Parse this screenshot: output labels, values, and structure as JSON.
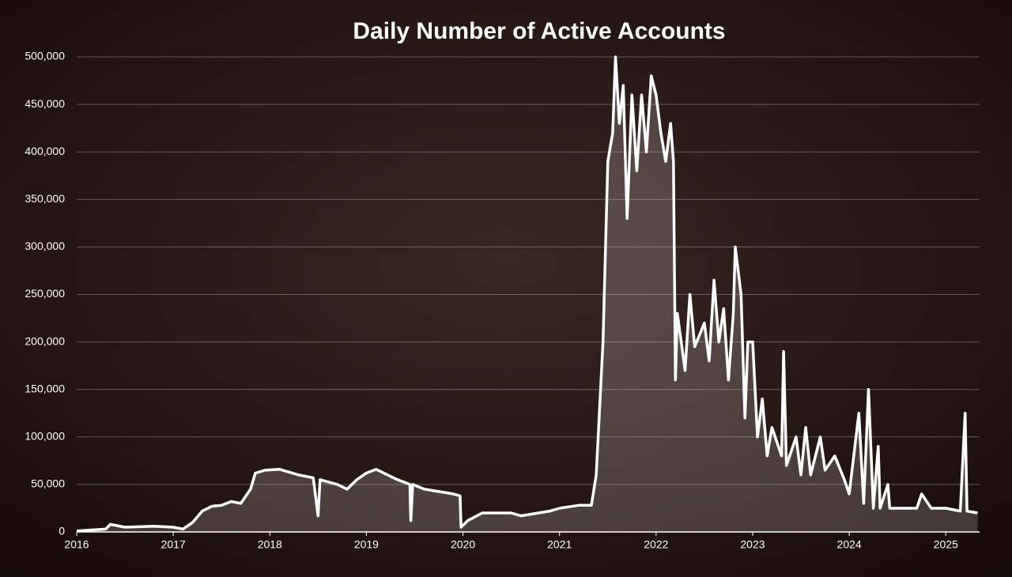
{
  "chart_data": {
    "type": "area",
    "title": "Daily Number of Active Accounts",
    "x": [
      2016.0,
      2016.3,
      2016.35,
      2016.5,
      2016.8,
      2017.0,
      2017.1,
      2017.2,
      2017.3,
      2017.4,
      2017.5,
      2017.6,
      2017.7,
      2017.8,
      2017.85,
      2017.95,
      2018.1,
      2018.3,
      2018.45,
      2018.5,
      2018.52,
      2018.7,
      2018.8,
      2018.9,
      2019.0,
      2019.1,
      2019.3,
      2019.45,
      2019.46,
      2019.48,
      2019.6,
      2019.9,
      2019.97,
      2019.98,
      2020.05,
      2020.2,
      2020.5,
      2020.6,
      2020.9,
      2021.0,
      2021.2,
      2021.33,
      2021.38,
      2021.45,
      2021.5,
      2021.55,
      2021.58,
      2021.62,
      2021.66,
      2021.7,
      2021.75,
      2021.8,
      2021.85,
      2021.9,
      2021.95,
      2022.0,
      2022.05,
      2022.1,
      2022.15,
      2022.18,
      2022.2,
      2022.22,
      2022.3,
      2022.35,
      2022.4,
      2022.5,
      2022.55,
      2022.6,
      2022.65,
      2022.7,
      2022.75,
      2022.8,
      2022.82,
      2022.88,
      2022.92,
      2022.95,
      2023.0,
      2023.05,
      2023.1,
      2023.15,
      2023.2,
      2023.3,
      2023.32,
      2023.35,
      2023.45,
      2023.5,
      2023.55,
      2023.6,
      2023.7,
      2023.75,
      2023.85,
      2023.95,
      2024.0,
      2024.1,
      2024.15,
      2024.2,
      2024.25,
      2024.3,
      2024.32,
      2024.4,
      2024.42,
      2024.7,
      2024.75,
      2024.85,
      2025.0,
      2025.15,
      2025.2,
      2025.22,
      2025.33
    ],
    "values": [
      1000,
      3000,
      8000,
      5000,
      6000,
      5000,
      3000,
      10000,
      22000,
      27000,
      28000,
      32000,
      30000,
      45000,
      62000,
      65000,
      66000,
      60000,
      57000,
      17000,
      55000,
      50000,
      45000,
      55000,
      62000,
      66000,
      56000,
      50000,
      12000,
      50000,
      45000,
      40000,
      38000,
      5000,
      12000,
      20000,
      20000,
      17000,
      22000,
      25000,
      28000,
      28000,
      60000,
      200000,
      390000,
      420000,
      500000,
      430000,
      470000,
      330000,
      460000,
      380000,
      460000,
      400000,
      480000,
      460000,
      420000,
      390000,
      430000,
      390000,
      160000,
      230000,
      170000,
      250000,
      195000,
      220000,
      180000,
      265000,
      200000,
      235000,
      160000,
      230000,
      300000,
      250000,
      120000,
      200000,
      200000,
      100000,
      140000,
      80000,
      110000,
      80000,
      190000,
      70000,
      100000,
      60000,
      110000,
      60000,
      100000,
      65000,
      80000,
      55000,
      40000,
      125000,
      30000,
      150000,
      25000,
      90000,
      25000,
      50000,
      25000,
      25000,
      40000,
      25000,
      25000,
      22000,
      125000,
      22000,
      20000
    ],
    "color": "#ffffff",
    "xlim": [
      2016,
      2025.35
    ],
    "xticks": [
      2016,
      2017,
      2018,
      2019,
      2020,
      2021,
      2022,
      2023,
      2024,
      2025
    ],
    "ylim": [
      0,
      500000
    ],
    "yticks": [
      0,
      {
        "value": 50000,
        "label": "50,000"
      },
      {
        "value": 100000,
        "label": "100,000"
      },
      {
        "value": 150000,
        "label": "150,000"
      },
      {
        "value": 200000,
        "label": "200,000"
      },
      {
        "value": 250000,
        "label": "250,000"
      },
      {
        "value": 300000,
        "label": "300,000"
      },
      {
        "value": 350000,
        "label": "350,000"
      },
      {
        "value": 400000,
        "label": "400,000"
      },
      {
        "value": 450000,
        "label": "450,000"
      },
      {
        "value": 500000,
        "label": "500,000"
      }
    ],
    "grid": true
  }
}
